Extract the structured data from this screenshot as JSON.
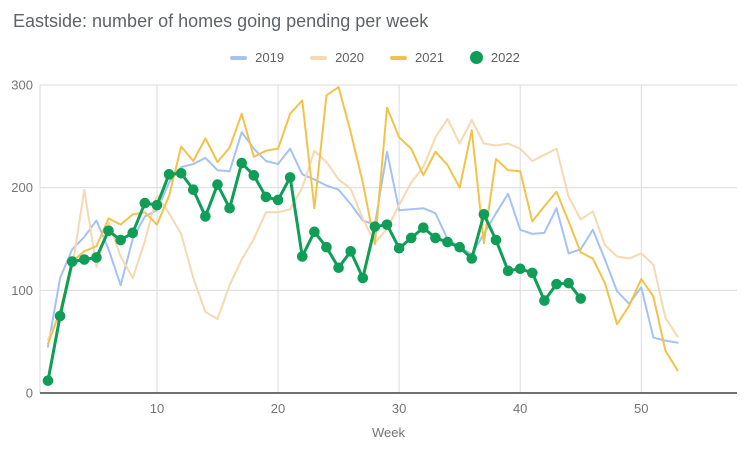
{
  "chart_data": {
    "type": "line",
    "title": "Eastside: number of homes going pending per week",
    "xlabel": "Week",
    "ylabel": "",
    "grid": true,
    "legend_position": "top-center",
    "xlim": [
      1,
      53.5
    ],
    "ylim": [
      0,
      300
    ],
    "x_ticks": [
      10,
      20,
      30,
      40,
      50
    ],
    "y_ticks": [
      0,
      100,
      200,
      300
    ],
    "x": [
      1,
      2,
      3,
      4,
      5,
      6,
      7,
      8,
      9,
      10,
      11,
      12,
      13,
      14,
      15,
      16,
      17,
      18,
      19,
      20,
      21,
      22,
      23,
      24,
      25,
      26,
      27,
      28,
      29,
      30,
      31,
      32,
      33,
      34,
      35,
      36,
      37,
      38,
      39,
      40,
      41,
      42,
      43,
      44,
      45,
      46,
      47,
      48,
      49,
      50,
      51,
      52,
      53
    ],
    "series": [
      {
        "name": "2019",
        "color": "#a4c2f4",
        "style": "line",
        "values": [
          45,
          112,
          140,
          152,
          168,
          140,
          105,
          150,
          172,
          178,
          205,
          220,
          223,
          229,
          217,
          216,
          254,
          238,
          226,
          223,
          238,
          213,
          208,
          202,
          198,
          184,
          168,
          164,
          235,
          178,
          179,
          180,
          175,
          150,
          142,
          135,
          155,
          175,
          194,
          159,
          155,
          156,
          180,
          136,
          140,
          159,
          130,
          99,
          87,
          103,
          54,
          51,
          49
        ]
      },
      {
        "name": "2020",
        "color": "#f7d8b0",
        "style": "line",
        "values": [
          52,
          78,
          122,
          198,
          123,
          166,
          133,
          112,
          148,
          192,
          175,
          155,
          112,
          79,
          72,
          105,
          130,
          150,
          176,
          176,
          179,
          200,
          236,
          225,
          208,
          199,
          170,
          146,
          160,
          183,
          205,
          220,
          249,
          267,
          243,
          266,
          243,
          241,
          243,
          238,
          226,
          232,
          238,
          191,
          169,
          177,
          144,
          133,
          131,
          136,
          125,
          73,
          55
        ]
      },
      {
        "name": "2021",
        "color": "#f2c34a",
        "style": "line",
        "values": [
          48,
          80,
          128,
          138,
          143,
          170,
          164,
          174,
          176,
          164,
          192,
          240,
          226,
          248,
          225,
          239,
          272,
          230,
          236,
          238,
          272,
          285,
          180,
          290,
          298,
          254,
          205,
          145,
          278,
          249,
          238,
          212,
          235,
          222,
          200,
          256,
          146,
          228,
          217,
          216,
          167,
          182,
          196,
          167,
          137,
          131,
          107,
          67,
          85,
          111,
          94,
          41,
          22
        ]
      },
      {
        "name": "2022",
        "color": "#0f9d58",
        "style": "line+markers",
        "values": [
          12,
          75,
          128,
          130,
          132,
          158,
          149,
          156,
          185,
          183,
          213,
          214,
          198,
          172,
          203,
          180,
          224,
          212,
          191,
          188,
          210,
          133,
          157,
          142,
          122,
          138,
          112,
          162,
          164,
          141,
          151,
          161,
          151,
          147,
          142,
          131,
          174,
          149,
          119,
          121,
          117,
          90,
          106,
          107,
          92,
          null,
          null,
          null,
          null,
          null,
          null,
          null,
          null
        ]
      }
    ],
    "axis_colors": {
      "grid": "#dadce0",
      "axis_line": "#424242",
      "tick_label": "#757575",
      "title": "#5f6368"
    }
  }
}
